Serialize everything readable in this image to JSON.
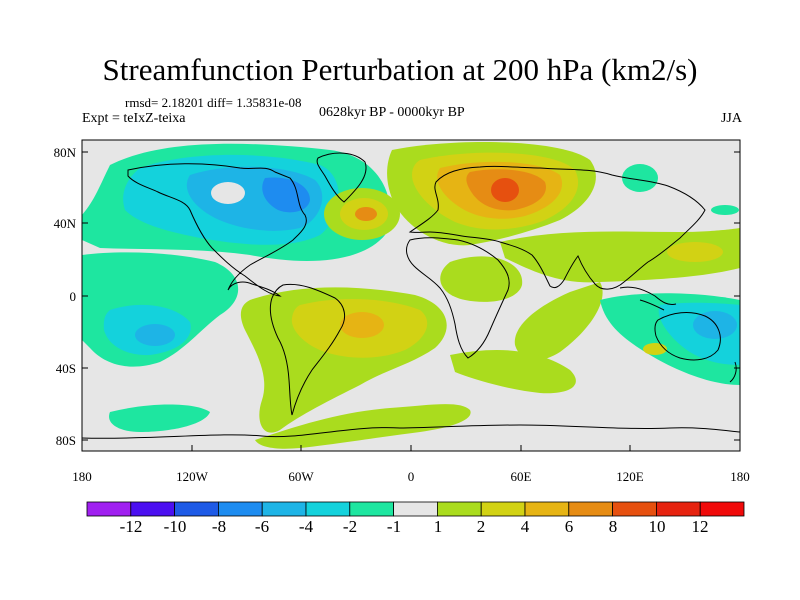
{
  "title": "Streamfunction Perturbation at 200 hPa (km2/s)",
  "stats": "rmsd= 2.18201 diff= 1.35831e-08",
  "experiment": "Expt = teIxZ-teixa",
  "period": "0628kyr BP - 0000kyr BP",
  "season": "JJA",
  "lat_ticks": [
    "80N",
    "40N",
    "0",
    "40S",
    "80S"
  ],
  "lon_ticks": [
    "180",
    "120W",
    "60W",
    "0",
    "60E",
    "120E",
    "180"
  ],
  "colorbar": {
    "labels": [
      "-12",
      "-10",
      "-8",
      "-6",
      "-4",
      "-2",
      "-1",
      "1",
      "2",
      "4",
      "6",
      "8",
      "10",
      "12"
    ],
    "colors": [
      "#a020f0",
      "#4b0ff0",
      "#1e5ae6",
      "#1e8cf0",
      "#1eb4e6",
      "#14d2dc",
      "#1ee6a0",
      "#e6e6e6",
      "#aadc1e",
      "#d2d214",
      "#e6b414",
      "#e68c14",
      "#e6500f",
      "#e6230f",
      "#f00a0a"
    ]
  },
  "palette": {
    "background": "#e6e6e6",
    "neutral": "#e6e6e6",
    "green": "#aadc1e",
    "yellow": "#d2d214",
    "gold": "#e6b414",
    "orange": "#e68c14",
    "red_orange": "#e6500f",
    "teal": "#1ee6a0",
    "cyan": "#14d2dc",
    "sky": "#1eb4e6",
    "blue": "#1e8cf0",
    "dark_blue": "#1e5ae6"
  }
}
